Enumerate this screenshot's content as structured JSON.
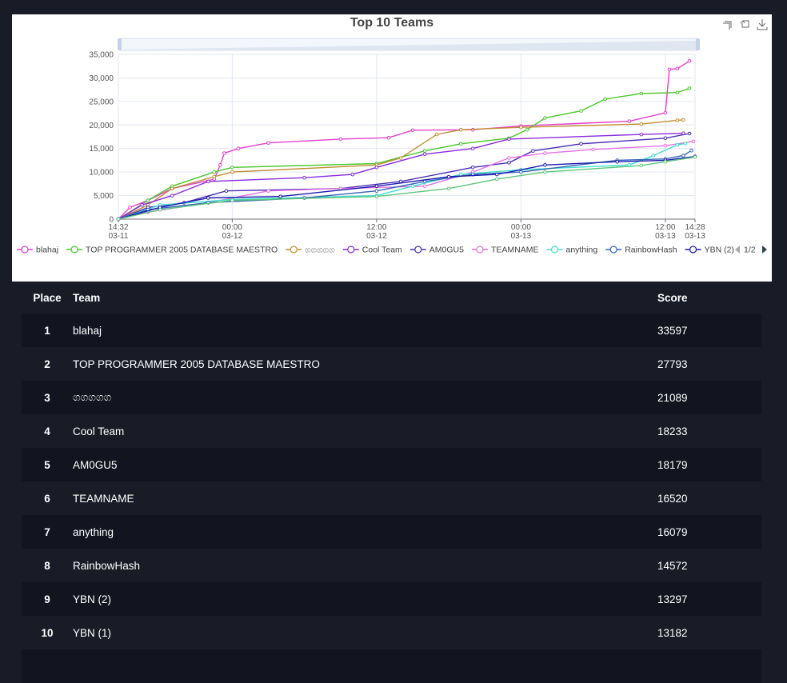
{
  "chart_data": {
    "type": "line",
    "title": "Top 10 Teams",
    "ylim": [
      0,
      35000
    ],
    "y_ticks": [
      "0",
      "5,000",
      "10,000",
      "15,000",
      "20,000",
      "25,000",
      "30,000",
      "35,000"
    ],
    "x_ticks": [
      {
        "time": "14:32",
        "date": "03-11"
      },
      {
        "time": "00:00",
        "date": "03-12"
      },
      {
        "time": "12:00",
        "date": "03-12"
      },
      {
        "time": "00:00",
        "date": "03-13"
      },
      {
        "time": "12:00",
        "date": "03-13"
      },
      {
        "time": "14:28",
        "date": "03-13"
      }
    ],
    "x_range": [
      "03-11 14:32",
      "03-13 14:28"
    ],
    "legend_page": "1/2",
    "legend_position": "bottom",
    "grid": true,
    "series": [
      {
        "name": "blahaj",
        "color": "#e83fcf",
        "points": [
          [
            "03-11 14:32",
            0
          ],
          [
            "03-11 15:30",
            2500
          ],
          [
            "03-11 17:00",
            4000
          ],
          [
            "03-11 19:00",
            6500
          ],
          [
            "03-11 22:30",
            8500
          ],
          [
            "03-11 23:00",
            11500
          ],
          [
            "03-11 23:20",
            14000
          ],
          [
            "03-12 00:30",
            15000
          ],
          [
            "03-12 03:00",
            16200
          ],
          [
            "03-12 09:00",
            17000
          ],
          [
            "03-12 13:00",
            17300
          ],
          [
            "03-12 15:00",
            18900
          ],
          [
            "03-12 20:00",
            19000
          ],
          [
            "03-13 00:00",
            19800
          ],
          [
            "03-13 09:00",
            20800
          ],
          [
            "03-13 12:00",
            22600
          ],
          [
            "03-13 12:20",
            31800
          ],
          [
            "03-13 13:00",
            32000
          ],
          [
            "03-13 14:00",
            33597
          ]
        ]
      },
      {
        "name": "TOP PROGRAMMER 2005 DATABASE MAESTRO",
        "color": "#49c72a",
        "points": [
          [
            "03-11 14:32",
            0
          ],
          [
            "03-11 17:00",
            4000
          ],
          [
            "03-11 19:00",
            7000
          ],
          [
            "03-11 22:30",
            10000
          ],
          [
            "03-12 00:00",
            11000
          ],
          [
            "03-12 12:00",
            11800
          ],
          [
            "03-12 16:00",
            14500
          ],
          [
            "03-12 19:00",
            16000
          ],
          [
            "03-12 23:00",
            17200
          ],
          [
            "03-13 00:30",
            19000
          ],
          [
            "03-13 02:00",
            21500
          ],
          [
            "03-13 05:00",
            23000
          ],
          [
            "03-13 07:00",
            25500
          ],
          [
            "03-13 10:00",
            26700
          ],
          [
            "03-13 13:00",
            26900
          ],
          [
            "03-13 14:00",
            27793
          ]
        ]
      },
      {
        "name": "ගගගගග",
        "color": "#c28d30",
        "points": [
          [
            "03-11 14:32",
            0
          ],
          [
            "03-11 17:00",
            3000
          ],
          [
            "03-11 19:00",
            6500
          ],
          [
            "03-11 22:30",
            9000
          ],
          [
            "03-12 00:00",
            10000
          ],
          [
            "03-12 12:00",
            11500
          ],
          [
            "03-12 14:00",
            13000
          ],
          [
            "03-12 17:00",
            18000
          ],
          [
            "03-12 19:00",
            19000
          ],
          [
            "03-13 00:00",
            19500
          ],
          [
            "03-13 10:00",
            20200
          ],
          [
            "03-13 13:00",
            21000
          ],
          [
            "03-13 13:30",
            21089
          ]
        ]
      },
      {
        "name": "Cool Team",
        "color": "#8a2be2",
        "points": [
          [
            "03-11 14:32",
            0
          ],
          [
            "03-11 16:30",
            3000
          ],
          [
            "03-11 19:00",
            5000
          ],
          [
            "03-11 22:00",
            8000
          ],
          [
            "03-12 06:00",
            8800
          ],
          [
            "03-12 10:00",
            9500
          ],
          [
            "03-12 12:00",
            11000
          ],
          [
            "03-12 16:00",
            13800
          ],
          [
            "03-12 20:00",
            15000
          ],
          [
            "03-12 23:00",
            17000
          ],
          [
            "03-13 10:00",
            18000
          ],
          [
            "03-13 13:30",
            18233
          ]
        ]
      },
      {
        "name": "AM0GU5",
        "color": "#4b2db8",
        "points": [
          [
            "03-11 14:32",
            0
          ],
          [
            "03-11 17:00",
            2500
          ],
          [
            "03-11 20:00",
            3500
          ],
          [
            "03-11 23:30",
            6000
          ],
          [
            "03-12 09:00",
            6500
          ],
          [
            "03-12 14:00",
            8000
          ],
          [
            "03-12 20:00",
            11000
          ],
          [
            "03-12 23:00",
            12000
          ],
          [
            "03-13 01:00",
            14500
          ],
          [
            "03-13 05:00",
            16000
          ],
          [
            "03-13 12:00",
            17200
          ],
          [
            "03-13 14:00",
            18179
          ]
        ]
      },
      {
        "name": "TEAMNAME",
        "color": "#e86fe6",
        "points": [
          [
            "03-11 14:32",
            0
          ],
          [
            "03-11 17:00",
            1500
          ],
          [
            "03-11 22:00",
            3500
          ],
          [
            "03-12 03:00",
            6000
          ],
          [
            "03-12 09:00",
            6500
          ],
          [
            "03-12 16:00",
            7000
          ],
          [
            "03-12 20:00",
            10000
          ],
          [
            "03-12 23:00",
            13000
          ],
          [
            "03-13 02:00",
            14000
          ],
          [
            "03-13 06:00",
            14800
          ],
          [
            "03-13 12:00",
            15600
          ],
          [
            "03-13 14:20",
            16520
          ]
        ]
      },
      {
        "name": "anything",
        "color": "#40e0d0",
        "points": [
          [
            "03-11 14:32",
            0
          ],
          [
            "03-11 18:00",
            3000
          ],
          [
            "03-12 00:00",
            4200
          ],
          [
            "03-12 12:00",
            5000
          ],
          [
            "03-12 15:00",
            7000
          ],
          [
            "03-12 19:00",
            9500
          ],
          [
            "03-13 00:00",
            10500
          ],
          [
            "03-13 09:00",
            11500
          ],
          [
            "03-13 11:00",
            13500
          ],
          [
            "03-13 13:00",
            15800
          ],
          [
            "03-13 13:40",
            16079
          ]
        ]
      },
      {
        "name": "RainbowHash",
        "color": "#3565b8",
        "points": [
          [
            "03-11 14:32",
            0
          ],
          [
            "03-11 17:00",
            2000
          ],
          [
            "03-11 22:00",
            3500
          ],
          [
            "03-12 06:00",
            4500
          ],
          [
            "03-12 12:00",
            6000
          ],
          [
            "03-12 16:00",
            8000
          ],
          [
            "03-12 20:00",
            9500
          ],
          [
            "03-13 00:00",
            10000
          ],
          [
            "03-13 08:00",
            12500
          ],
          [
            "03-13 12:00",
            12800
          ],
          [
            "03-13 13:30",
            13500
          ],
          [
            "03-13 14:10",
            14572
          ]
        ]
      },
      {
        "name": "YBN (2)",
        "color": "#1a1ab0",
        "points": [
          [
            "03-11 14:32",
            0
          ],
          [
            "03-11 18:00",
            2500
          ],
          [
            "03-11 22:00",
            4500
          ],
          [
            "03-12 04:00",
            4800
          ],
          [
            "03-12 12:00",
            7000
          ],
          [
            "03-12 18:00",
            9000
          ],
          [
            "03-12 22:00",
            9500
          ],
          [
            "03-13 02:00",
            11500
          ],
          [
            "03-13 08:00",
            12200
          ],
          [
            "03-13 12:00",
            12500
          ],
          [
            "03-13 14:28",
            13297
          ]
        ]
      },
      {
        "name": "YBN (1)",
        "color": "#5cc77a",
        "points": [
          [
            "03-11 14:32",
            0
          ],
          [
            "03-11 18:00",
            2000
          ],
          [
            "03-12 00:00",
            4000
          ],
          [
            "03-12 12:00",
            4800
          ],
          [
            "03-12 18:00",
            6500
          ],
          [
            "03-12 22:00",
            8500
          ],
          [
            "03-13 02:00",
            10000
          ],
          [
            "03-13 10:00",
            11400
          ],
          [
            "03-13 12:00",
            12200
          ],
          [
            "03-13 14:28",
            13182
          ]
        ]
      }
    ]
  },
  "table": {
    "headers": {
      "place": "Place",
      "team": "Team",
      "score": "Score"
    },
    "rows": [
      {
        "place": "1",
        "team": "blahaj",
        "score": "33597"
      },
      {
        "place": "2",
        "team": "TOP PROGRAMMER 2005 DATABASE MAESTRO",
        "score": "27793"
      },
      {
        "place": "3",
        "team": "ගගගගග",
        "score": "21089"
      },
      {
        "place": "4",
        "team": "Cool Team",
        "score": "18233"
      },
      {
        "place": "5",
        "team": "AM0GU5",
        "score": "18179"
      },
      {
        "place": "6",
        "team": "TEAMNAME",
        "score": "16520"
      },
      {
        "place": "7",
        "team": "anything",
        "score": "16079"
      },
      {
        "place": "8",
        "team": "RainbowHash",
        "score": "14572"
      },
      {
        "place": "9",
        "team": "YBN (2)",
        "score": "13297"
      },
      {
        "place": "10",
        "team": "YBN (1)",
        "score": "13182"
      }
    ]
  },
  "toolbox": {
    "icons": [
      "zoom-icon",
      "zoom-reset-icon",
      "download-icon"
    ]
  }
}
